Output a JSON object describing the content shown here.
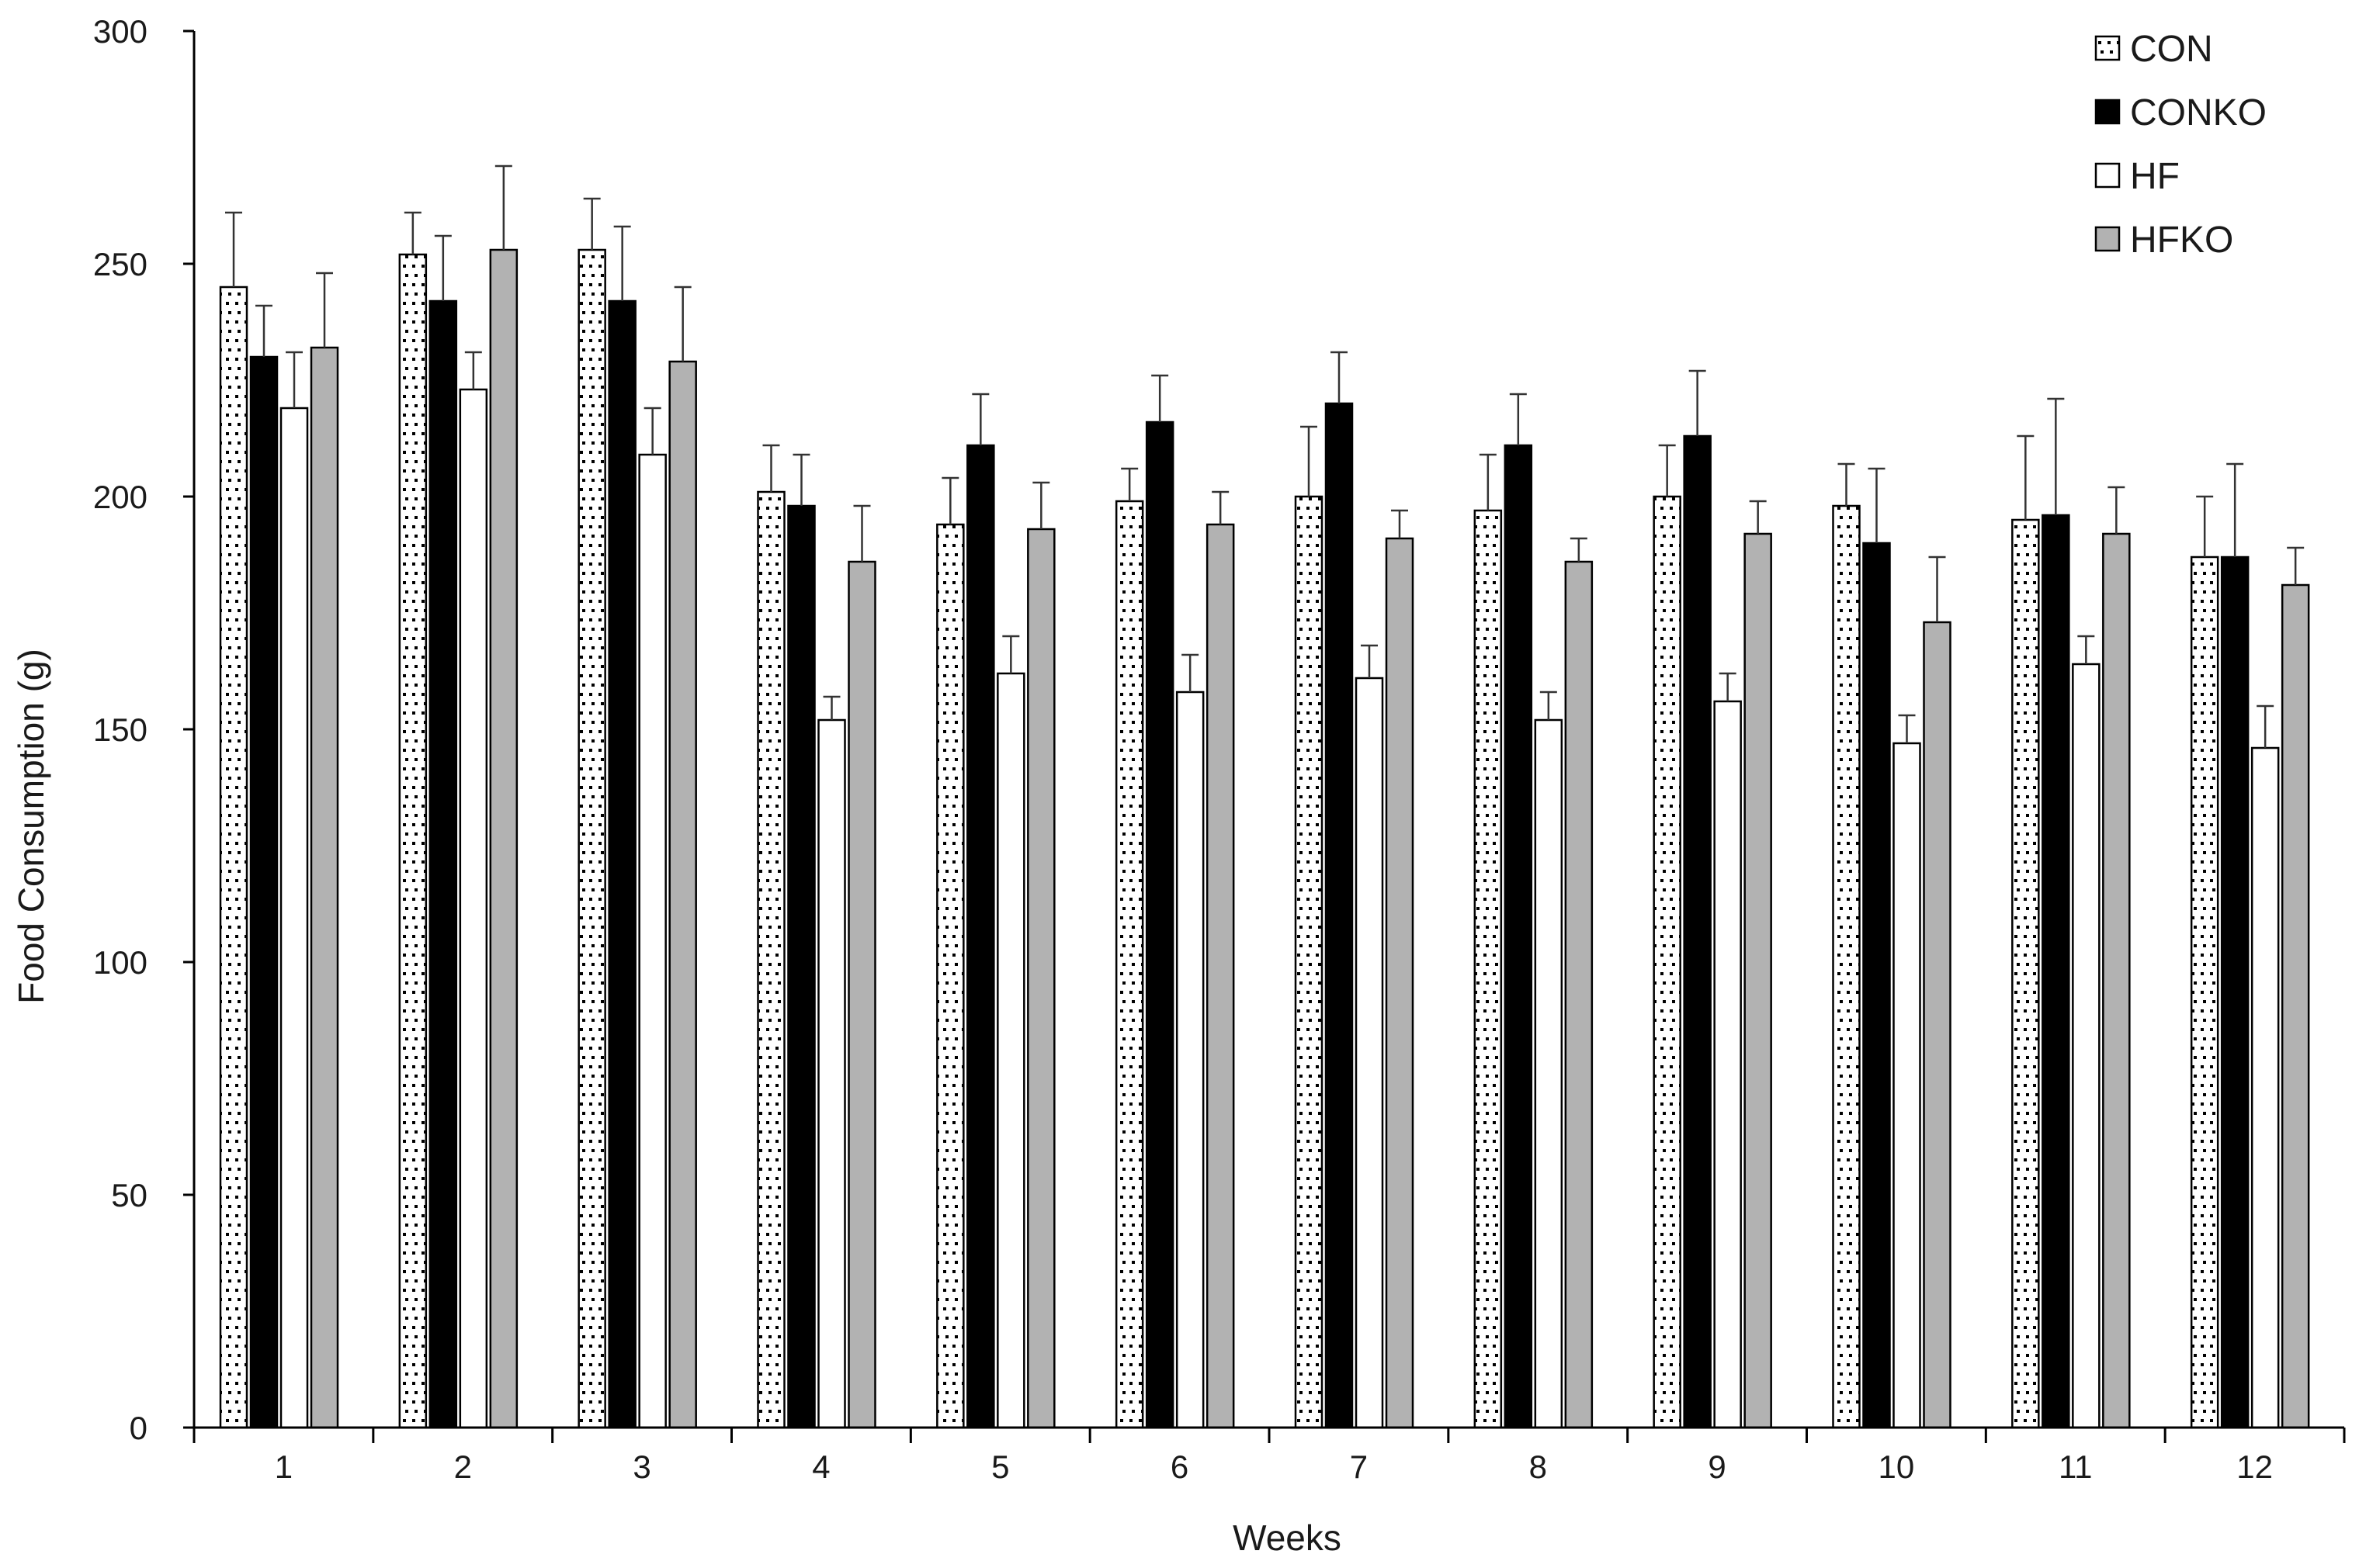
{
  "chart_data": {
    "type": "bar",
    "title": "",
    "xlabel": "Weeks",
    "ylabel": "Food Consumption (g)",
    "ylim": [
      0,
      300
    ],
    "yticks": [
      0,
      50,
      100,
      150,
      200,
      250,
      300
    ],
    "grid": false,
    "legend_position": "top-right",
    "categories": [
      "1",
      "2",
      "3",
      "4",
      "5",
      "6",
      "7",
      "8",
      "9",
      "10",
      "11",
      "12"
    ],
    "series": [
      {
        "name": "CON",
        "fill": "dotted",
        "color": "#ffffff",
        "values": [
          245,
          252,
          253,
          201,
          194,
          199,
          200,
          197,
          200,
          198,
          195,
          187
        ],
        "errors": [
          16,
          9,
          11,
          10,
          10,
          7,
          15,
          12,
          11,
          9,
          18,
          13
        ]
      },
      {
        "name": "CONKO",
        "fill": "solid",
        "color": "#000000",
        "values": [
          230,
          242,
          242,
          198,
          211,
          216,
          220,
          211,
          213,
          190,
          196,
          187
        ],
        "errors": [
          11,
          14,
          16,
          11,
          11,
          10,
          11,
          11,
          14,
          16,
          25,
          20
        ]
      },
      {
        "name": "HF",
        "fill": "solid",
        "color": "#ffffff",
        "values": [
          219,
          223,
          209,
          152,
          162,
          158,
          161,
          152,
          156,
          147,
          164,
          146
        ],
        "errors": [
          12,
          8,
          10,
          5,
          8,
          8,
          7,
          6,
          6,
          6,
          6,
          9
        ]
      },
      {
        "name": "HFKO",
        "fill": "solid",
        "color": "#b2b2b2",
        "values": [
          232,
          253,
          229,
          186,
          193,
          194,
          191,
          186,
          192,
          173,
          192,
          181
        ],
        "errors": [
          16,
          18,
          16,
          12,
          10,
          7,
          6,
          5,
          7,
          14,
          10,
          8
        ]
      }
    ]
  }
}
